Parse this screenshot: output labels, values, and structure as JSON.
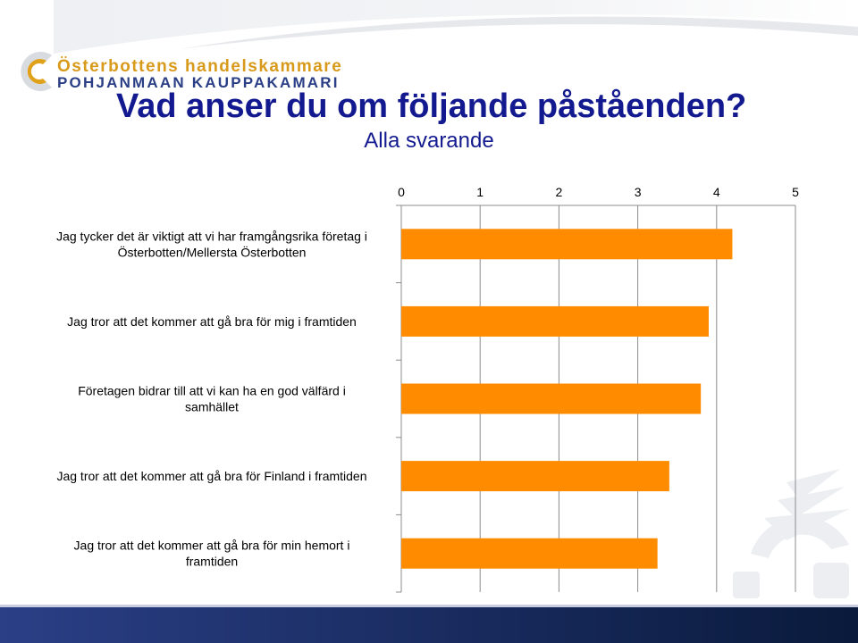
{
  "header": {
    "org_name_swedish": "Österbottens handelskammare",
    "org_name_finnish": "POHJANMAAN KAUPPAKAMARI",
    "logo_icon": "chamber-of-commerce-logo-icon"
  },
  "colors": {
    "title": "#13198f",
    "bar": "#ff8c00",
    "logo_gold": "#d89a1a",
    "logo_blue": "#2a3f86",
    "footer": "#0a1a3c"
  },
  "chart_data": {
    "type": "bar",
    "orientation": "horizontal",
    "title": "Vad anser du om följande påståenden?",
    "subtitle": "Alla svarande",
    "categories": [
      [
        "Jag tycker det är viktigt att vi har framgångsrika företag i",
        "Österbotten/Mellersta Österbotten"
      ],
      [
        "Jag tror att det kommer att gå bra för mig i framtiden"
      ],
      [
        "Företagen bidrar till att vi kan ha en god välfärd i",
        "samhället"
      ],
      [
        "Jag tror att det kommer att gå bra för Finland i framtiden"
      ],
      [
        "Jag tror att det kommer att gå bra för min hemort i",
        "framtiden"
      ]
    ],
    "values": [
      4.2,
      3.9,
      3.8,
      3.4,
      3.25
    ],
    "xlim": [
      0,
      5
    ],
    "xticks": [
      "0",
      "1",
      "2",
      "3",
      "4",
      "5"
    ],
    "xaxis_position": "top",
    "grid": true,
    "legend": "none"
  }
}
